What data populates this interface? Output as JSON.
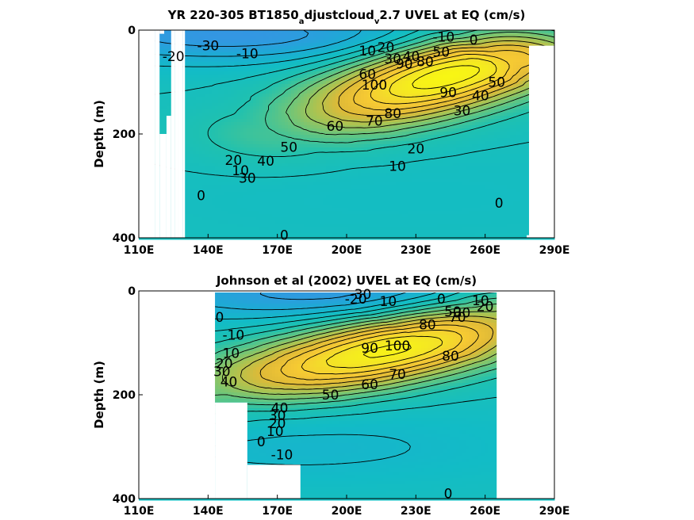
{
  "figure": {
    "colors": {
      "background": "#ffffff",
      "mask": "#ffffff",
      "colormap": [
        "#3d8ee8",
        "#1fa8d6",
        "#12bcc6",
        "#1fc1b0",
        "#5dc585",
        "#a4c455",
        "#dfba37",
        "#f5c834",
        "#f4e624",
        "#f9fb0e"
      ]
    }
  },
  "chart_data": [
    {
      "id": "top",
      "type": "heatmap",
      "title": {
        "part1": "YR 220-305 BT1850",
        "sub1": "a",
        "part2": "djustcloud",
        "sub2": "v",
        "part3": "2.7 UVEL at EQ (cm/s)"
      },
      "ylabel": "Depth (m)",
      "xlim": [
        110,
        290
      ],
      "ylim": [
        400,
        0
      ],
      "x_ticks": [
        {
          "value": 110,
          "label": "110E"
        },
        {
          "value": 140,
          "label": "140E"
        },
        {
          "value": 170,
          "label": "170E"
        },
        {
          "value": 200,
          "label": "200E"
        },
        {
          "value": 230,
          "label": "230E"
        },
        {
          "value": 260,
          "label": "260E"
        },
        {
          "value": 290,
          "label": "290E"
        }
      ],
      "y_ticks": [
        {
          "value": 0,
          "label": "0"
        },
        {
          "value": 200,
          "label": "200"
        },
        {
          "value": 400,
          "label": "400"
        }
      ],
      "contour_interval": 10,
      "undercurrent": {
        "core_path": [
          [
            170,
            200
          ],
          [
            185,
            182
          ],
          [
            200,
            160
          ],
          [
            215,
            135
          ],
          [
            230,
            110
          ],
          [
            245,
            85
          ],
          [
            258,
            65
          ],
          [
            268,
            55
          ]
        ],
        "max_value": 108,
        "core_index": 5,
        "thickness_m": 55,
        "rise_m": 25,
        "band_start": 3,
        "band_length": 11
      },
      "surface_flow": {
        "value": -35,
        "lon": 150,
        "depth": 10,
        "sigma_lon": 45,
        "sigma_depth": 55
      },
      "deep_flow": {
        "value": -4,
        "lon": 225,
        "depth": 320,
        "sigma_lon": 45,
        "sigma_depth": 55
      },
      "masked_regions": [
        {
          "lon": [
            119,
            121
          ],
          "depth": [
            0,
            7
          ],
          "lon_end": [
            125.5,
            126.5
          ]
        },
        {
          "lon": [
            110,
            117
          ],
          "depth": [
            0,
            400
          ]
        },
        {
          "lon": [
            117,
            119
          ],
          "depth": [
            0,
            400
          ]
        },
        {
          "lon": [
            119,
            122
          ],
          "depth": [
            200,
            400
          ]
        },
        {
          "lon": [
            122,
            124
          ],
          "depth": [
            165,
            400
          ]
        },
        {
          "lon": [
            124,
            125.5
          ],
          "depth": [
            0,
            400
          ]
        },
        {
          "lon": [
            125.5,
            127
          ],
          "depth": [
            0,
            400
          ]
        },
        {
          "lon": [
            127,
            129
          ],
          "depth": [
            0,
            400
          ]
        },
        {
          "lon": [
            129,
            130
          ],
          "depth": [
            0,
            400
          ]
        },
        {
          "lon": [
            279,
            290
          ],
          "depth": [
            30,
            400
          ]
        },
        {
          "lon": [
            278,
            290
          ],
          "depth": [
            395,
            400
          ]
        }
      ],
      "contour_labels": [
        {
          "text": "-10",
          "lon": 242,
          "depth": 13
        },
        {
          "text": "0",
          "lon": 255,
          "depth": 18
        },
        {
          "text": "-30",
          "lon": 140,
          "depth": 30
        },
        {
          "text": "-20",
          "lon": 125,
          "depth": 50
        },
        {
          "text": "-10",
          "lon": 157,
          "depth": 45
        },
        {
          "text": "10",
          "lon": 209,
          "depth": 40
        },
        {
          "text": "20",
          "lon": 217,
          "depth": 33
        },
        {
          "text": "30",
          "lon": 220,
          "depth": 55
        },
        {
          "text": "40",
          "lon": 228,
          "depth": 50
        },
        {
          "text": "50",
          "lon": 241,
          "depth": 42
        },
        {
          "text": "60",
          "lon": 209,
          "depth": 85
        },
        {
          "text": "90",
          "lon": 225,
          "depth": 65
        },
        {
          "text": "80",
          "lon": 234,
          "depth": 60
        },
        {
          "text": "100",
          "lon": 212,
          "depth": 105
        },
        {
          "text": "90",
          "lon": 244,
          "depth": 120
        },
        {
          "text": "50",
          "lon": 265,
          "depth": 100
        },
        {
          "text": "40",
          "lon": 258,
          "depth": 126
        },
        {
          "text": "30",
          "lon": 250,
          "depth": 155
        },
        {
          "text": "80",
          "lon": 220,
          "depth": 160
        },
        {
          "text": "70",
          "lon": 212,
          "depth": 175
        },
        {
          "text": "60",
          "lon": 195,
          "depth": 185
        },
        {
          "text": "50",
          "lon": 175,
          "depth": 225
        },
        {
          "text": "40",
          "lon": 165,
          "depth": 252
        },
        {
          "text": "20",
          "lon": 230,
          "depth": 228
        },
        {
          "text": "10",
          "lon": 222,
          "depth": 262
        },
        {
          "text": "20",
          "lon": 151,
          "depth": 250
        },
        {
          "text": "10",
          "lon": 154,
          "depth": 270
        },
        {
          "text": "30",
          "lon": 157,
          "depth": 285
        },
        {
          "text": "0",
          "lon": 137,
          "depth": 318
        },
        {
          "text": "0",
          "lon": 173,
          "depth": 395
        },
        {
          "text": "0",
          "lon": 266,
          "depth": 333
        }
      ]
    },
    {
      "id": "bottom",
      "type": "heatmap",
      "title": {
        "full": "Johnson et al (2002) UVEL at EQ (cm/s)"
      },
      "ylabel": "Depth (m)",
      "xlim": [
        110,
        290
      ],
      "ylim": [
        400,
        0
      ],
      "x_ticks": [
        {
          "value": 110,
          "label": "110E"
        },
        {
          "value": 140,
          "label": "140E"
        },
        {
          "value": 170,
          "label": "170E"
        },
        {
          "value": 200,
          "label": "200E"
        },
        {
          "value": 230,
          "label": "230E"
        },
        {
          "value": 260,
          "label": "260E"
        },
        {
          "value": 290,
          "label": "290E"
        }
      ],
      "y_ticks": [
        {
          "value": 0,
          "label": "0"
        },
        {
          "value": 200,
          "label": "200"
        },
        {
          "value": 400,
          "label": "400"
        }
      ],
      "contour_interval": 10,
      "undercurrent": {
        "core_path": [
          [
            143,
            185
          ],
          [
            160,
            172
          ],
          [
            180,
            155
          ],
          [
            200,
            135
          ],
          [
            220,
            112
          ],
          [
            235,
            95
          ],
          [
            250,
            70
          ],
          [
            265,
            45
          ]
        ],
        "max_value": 103,
        "core_index": 4,
        "thickness_m": 55,
        "rise_m": 40,
        "band_start": 2,
        "band_length": 11
      },
      "surface_flow": {
        "value": -35,
        "lon": 200,
        "depth": 5,
        "sigma_lon": 45,
        "sigma_depth": 55
      },
      "deep_flow": {
        "value": -12,
        "lon": 180,
        "depth": 300,
        "sigma_lon": 45,
        "sigma_depth": 55
      },
      "masked_regions": [
        {
          "lon": [
            110,
            143
          ],
          "depth": [
            0,
            400
          ]
        },
        {
          "lon": [
            143,
            157
          ],
          "depth": [
            215,
            400
          ]
        },
        {
          "lon": [
            157,
            180
          ],
          "depth": [
            335,
            400
          ]
        },
        {
          "lon": [
            265,
            290
          ],
          "depth": [
            0,
            400
          ]
        },
        {
          "lon": [
            110,
            290
          ],
          "depth": [
            0,
            3
          ]
        }
      ],
      "contour_labels": [
        {
          "text": "-30",
          "lon": 206,
          "depth": 6
        },
        {
          "text": "-20",
          "lon": 204,
          "depth": 15
        },
        {
          "text": "10",
          "lon": 218,
          "depth": 20
        },
        {
          "text": "0",
          "lon": 241,
          "depth": 15
        },
        {
          "text": "10",
          "lon": 258,
          "depth": 18
        },
        {
          "text": "20",
          "lon": 260,
          "depth": 30
        },
        {
          "text": "50",
          "lon": 246,
          "depth": 40
        },
        {
          "text": "30",
          "lon": 250,
          "depth": 42
        },
        {
          "text": "70",
          "lon": 248,
          "depth": 50
        },
        {
          "text": "80",
          "lon": 235,
          "depth": 65
        },
        {
          "text": "0",
          "lon": 145,
          "depth": 50
        },
        {
          "text": "-10",
          "lon": 151,
          "depth": 85
        },
        {
          "text": "10",
          "lon": 150,
          "depth": 120
        },
        {
          "text": "20",
          "lon": 147,
          "depth": 140
        },
        {
          "text": "30",
          "lon": 146,
          "depth": 155
        },
        {
          "text": "40",
          "lon": 149,
          "depth": 175
        },
        {
          "text": "90",
          "lon": 210,
          "depth": 110
        },
        {
          "text": "100",
          "lon": 222,
          "depth": 105
        },
        {
          "text": "80",
          "lon": 245,
          "depth": 125
        },
        {
          "text": "70",
          "lon": 222,
          "depth": 160
        },
        {
          "text": "60",
          "lon": 210,
          "depth": 180
        },
        {
          "text": "50",
          "lon": 193,
          "depth": 200
        },
        {
          "text": "40",
          "lon": 171,
          "depth": 225
        },
        {
          "text": "30",
          "lon": 170,
          "depth": 240
        },
        {
          "text": "20",
          "lon": 170,
          "depth": 255
        },
        {
          "text": "10",
          "lon": 169,
          "depth": 270
        },
        {
          "text": "0",
          "lon": 163,
          "depth": 290
        },
        {
          "text": "-10",
          "lon": 172,
          "depth": 315
        },
        {
          "text": "0",
          "lon": 244,
          "depth": 390
        }
      ]
    }
  ]
}
